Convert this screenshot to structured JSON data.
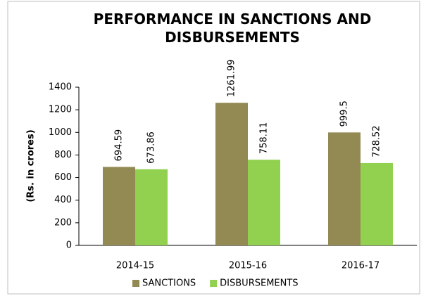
{
  "chart_data": {
    "type": "bar",
    "title": "PERFORMANCE IN SANCTIONS AND DISBURSEMENTS",
    "y_label": "(Rs. in crores)",
    "categories": [
      "2014-15",
      "2015-16",
      "2016-17"
    ],
    "series": [
      {
        "name": "SANCTIONS",
        "color": "#938953",
        "values": [
          694.59,
          1261.99,
          999.5
        ]
      },
      {
        "name": "DISBURSEMENTS",
        "color": "#92d050",
        "values": [
          673.86,
          758.11,
          728.52
        ]
      }
    ],
    "ylim": [
      0,
      1400
    ],
    "yticks": [
      0,
      200,
      400,
      600,
      800,
      1000,
      1200,
      1400
    ],
    "legend": "bottom",
    "grid": false
  }
}
